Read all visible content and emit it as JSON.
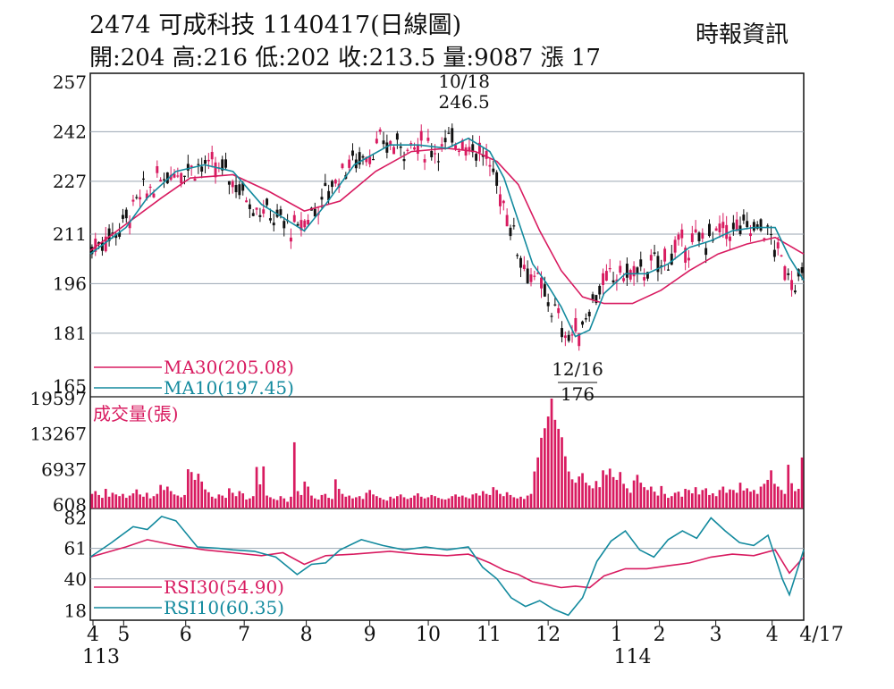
{
  "header": {
    "title": "2474  可成科技 1140417(日線圖)",
    "quote": "開:204 高:216 低:202 收:213.5 量:9087 漲 17",
    "brand": "時報資訊"
  },
  "chart_data": [
    {
      "type": "candlestick",
      "panel": "price",
      "y_ticks": [
        165,
        181,
        196,
        211,
        227,
        242,
        257
      ],
      "ylim": [
        165,
        257
      ],
      "grid": true,
      "annotations": [
        {
          "lines": [
            "10/18",
            "246.5"
          ],
          "kind": "high",
          "x": 0.524,
          "y": 246.5
        },
        {
          "lines": [
            "12/16",
            "176"
          ],
          "kind": "low",
          "x": 0.683,
          "y": 176
        }
      ],
      "last_bar": {
        "open": 204,
        "high": 216,
        "low": 202,
        "close": 213.5
      },
      "series": [
        {
          "name": "MA30(205.08)",
          "color": "#d81b60",
          "points": [
            [
              0,
              206
            ],
            [
              0.05,
              214
            ],
            [
              0.1,
              222
            ],
            [
              0.14,
              228
            ],
            [
              0.2,
              229
            ],
            [
              0.25,
              224
            ],
            [
              0.3,
              218
            ],
            [
              0.35,
              221
            ],
            [
              0.4,
              230
            ],
            [
              0.45,
              236
            ],
            [
              0.5,
              237
            ],
            [
              0.54,
              236
            ],
            [
              0.57,
              233
            ],
            [
              0.6,
              226
            ],
            [
              0.63,
              212
            ],
            [
              0.66,
              200
            ],
            [
              0.69,
              192
            ],
            [
              0.72,
              190
            ],
            [
              0.76,
              190
            ],
            [
              0.8,
              194
            ],
            [
              0.84,
              200
            ],
            [
              0.88,
              205
            ],
            [
              0.92,
              208
            ],
            [
              0.96,
              210
            ],
            [
              1,
              205
            ]
          ]
        },
        {
          "name": "MA10(197.45)",
          "color": "#138a9e",
          "points": [
            [
              0,
              205
            ],
            [
              0.05,
              213
            ],
            [
              0.08,
              222
            ],
            [
              0.12,
              230
            ],
            [
              0.16,
              232
            ],
            [
              0.2,
              230
            ],
            [
              0.24,
              220
            ],
            [
              0.27,
              216
            ],
            [
              0.3,
              212
            ],
            [
              0.33,
              220
            ],
            [
              0.37,
              232
            ],
            [
              0.42,
              238
            ],
            [
              0.46,
              238
            ],
            [
              0.5,
              237
            ],
            [
              0.53,
              240
            ],
            [
              0.56,
              236
            ],
            [
              0.58,
              228
            ],
            [
              0.6,
              215
            ],
            [
              0.62,
              202
            ],
            [
              0.64,
              196
            ],
            [
              0.66,
              189
            ],
            [
              0.68,
              180
            ],
            [
              0.7,
              182
            ],
            [
              0.72,
              193
            ],
            [
              0.75,
              199
            ],
            [
              0.78,
              199
            ],
            [
              0.81,
              202
            ],
            [
              0.84,
              207
            ],
            [
              0.87,
              209
            ],
            [
              0.9,
              212
            ],
            [
              0.93,
              213
            ],
            [
              0.96,
              213
            ],
            [
              0.98,
              204
            ],
            [
              1,
              197
            ]
          ]
        }
      ]
    },
    {
      "type": "bar",
      "panel": "volume",
      "label": "成交量(張)",
      "y_ticks": [
        608,
        6937,
        13267,
        19597
      ],
      "ylim": [
        0,
        19597
      ],
      "color": "#d81b60",
      "values": [
        2600,
        3100,
        2400,
        1900,
        3500,
        2100,
        2800,
        2500,
        2200,
        2600,
        1900,
        2300,
        2700,
        3400,
        2500,
        2100,
        2800,
        1800,
        2200,
        2600,
        4200,
        3300,
        3900,
        3100,
        2500,
        2300,
        2000,
        2400,
        7000,
        6500,
        5100,
        6200,
        4800,
        3400,
        2900,
        2100,
        1800,
        2500,
        2300,
        1900,
        3600,
        2800,
        2200,
        3100,
        2700,
        1600,
        1800,
        2200,
        7400,
        4300,
        7500,
        2300,
        2000,
        1700,
        1500,
        2200,
        1800,
        1200,
        2100,
        11800,
        3100,
        2400,
        4800,
        3900,
        2300,
        1800,
        1600,
        2400,
        2600,
        1900,
        1700,
        5200,
        3500,
        2600,
        2100,
        2300,
        1800,
        2000,
        2200,
        1700,
        2800,
        3300,
        2500,
        2200,
        1900,
        1600,
        1400,
        2100,
        1800,
        2200,
        2500,
        2000,
        1700,
        1900,
        2300,
        2700,
        2100,
        1800,
        2000,
        2400,
        2200,
        1900,
        1700,
        1600,
        1800,
        2200,
        2500,
        2100,
        2300,
        2000,
        1800,
        2500,
        2700,
        2300,
        3100,
        2600,
        2400,
        3800,
        3300,
        2600,
        2200,
        2900,
        2400,
        2000,
        1800,
        2100,
        1700,
        2300,
        2600,
        6600,
        9100,
        12600,
        14300,
        16400,
        19597,
        15800,
        14200,
        12700,
        9300,
        6600,
        5200,
        4600,
        5700,
        6300,
        4600,
        4100,
        3600,
        4900,
        3800,
        6800,
        6000,
        7100,
        5600,
        5100,
        6500,
        4400,
        3600,
        2800,
        5000,
        6000,
        4600,
        3800,
        3300,
        3900,
        3000,
        2300,
        4000,
        2600,
        1900,
        2200,
        2800,
        3000,
        2100,
        3500,
        3300,
        2700,
        3800,
        2500,
        3300,
        3600,
        2400,
        2700,
        2200,
        3300,
        3900,
        2800,
        3400,
        3300,
        2800,
        4600,
        3200,
        3600,
        3000,
        3300,
        2600,
        3900,
        4400,
        5100,
        6800,
        4400,
        3900,
        3300,
        2600,
        7800,
        4500,
        3100,
        3500,
        9087
      ]
    },
    {
      "type": "line",
      "panel": "rsi",
      "y_ticks": [
        18,
        40,
        61,
        82
      ],
      "ylim": [
        14,
        86
      ],
      "grid": true,
      "series": [
        {
          "name": "RSI30(54.90)",
          "color": "#d81b60",
          "points": [
            [
              0,
              55
            ],
            [
              0.05,
              62
            ],
            [
              0.08,
              67
            ],
            [
              0.12,
              63
            ],
            [
              0.16,
              60
            ],
            [
              0.2,
              58
            ],
            [
              0.24,
              56
            ],
            [
              0.27,
              58
            ],
            [
              0.3,
              50
            ],
            [
              0.33,
              56
            ],
            [
              0.37,
              57
            ],
            [
              0.42,
              59
            ],
            [
              0.46,
              57
            ],
            [
              0.5,
              56
            ],
            [
              0.53,
              57
            ],
            [
              0.56,
              51
            ],
            [
              0.58,
              46
            ],
            [
              0.6,
              43
            ],
            [
              0.62,
              38
            ],
            [
              0.64,
              36
            ],
            [
              0.66,
              34
            ],
            [
              0.68,
              35
            ],
            [
              0.7,
              34
            ],
            [
              0.72,
              42
            ],
            [
              0.75,
              47
            ],
            [
              0.78,
              47
            ],
            [
              0.81,
              49
            ],
            [
              0.84,
              51
            ],
            [
              0.87,
              55
            ],
            [
              0.9,
              57
            ],
            [
              0.93,
              56
            ],
            [
              0.96,
              60
            ],
            [
              0.98,
              44
            ],
            [
              1,
              55
            ]
          ]
        },
        {
          "name": "RSI10(60.35)",
          "color": "#138a9e",
          "points": [
            [
              0,
              55
            ],
            [
              0.03,
              65
            ],
            [
              0.06,
              76
            ],
            [
              0.08,
              74
            ],
            [
              0.1,
              83
            ],
            [
              0.12,
              80
            ],
            [
              0.15,
              62
            ],
            [
              0.18,
              61
            ],
            [
              0.2,
              60
            ],
            [
              0.23,
              59
            ],
            [
              0.26,
              55
            ],
            [
              0.29,
              43
            ],
            [
              0.31,
              50
            ],
            [
              0.33,
              51
            ],
            [
              0.35,
              60
            ],
            [
              0.38,
              67
            ],
            [
              0.41,
              63
            ],
            [
              0.44,
              60
            ],
            [
              0.47,
              62
            ],
            [
              0.5,
              60
            ],
            [
              0.53,
              62
            ],
            [
              0.55,
              48
            ],
            [
              0.57,
              40
            ],
            [
              0.59,
              27
            ],
            [
              0.61,
              21
            ],
            [
              0.63,
              25
            ],
            [
              0.65,
              19
            ],
            [
              0.67,
              15
            ],
            [
              0.69,
              27
            ],
            [
              0.71,
              52
            ],
            [
              0.73,
              66
            ],
            [
              0.75,
              73
            ],
            [
              0.77,
              60
            ],
            [
              0.79,
              55
            ],
            [
              0.81,
              67
            ],
            [
              0.83,
              73
            ],
            [
              0.85,
              68
            ],
            [
              0.87,
              82
            ],
            [
              0.89,
              73
            ],
            [
              0.91,
              65
            ],
            [
              0.93,
              63
            ],
            [
              0.95,
              70
            ],
            [
              0.97,
              40
            ],
            [
              0.98,
              29
            ],
            [
              1,
              60
            ]
          ]
        }
      ]
    }
  ],
  "x_axis": {
    "ticks": [
      {
        "label": "4",
        "pos": 0.0
      },
      {
        "label": "5",
        "pos": 0.043
      },
      {
        "label": "6",
        "pos": 0.13
      },
      {
        "label": "7",
        "pos": 0.212
      },
      {
        "label": "8",
        "pos": 0.299
      },
      {
        "label": "9",
        "pos": 0.388
      },
      {
        "label": "10",
        "pos": 0.47
      },
      {
        "label": "11",
        "pos": 0.555
      },
      {
        "label": "12",
        "pos": 0.638
      },
      {
        "label": "1",
        "pos": 0.734
      },
      {
        "label": "2",
        "pos": 0.794
      },
      {
        "label": "3",
        "pos": 0.873
      },
      {
        "label": "4",
        "pos": 0.952
      }
    ],
    "end_label": "4/17",
    "year_labels": [
      {
        "label": "113",
        "pos": 0.0
      },
      {
        "label": "114",
        "pos": 0.745
      }
    ]
  }
}
